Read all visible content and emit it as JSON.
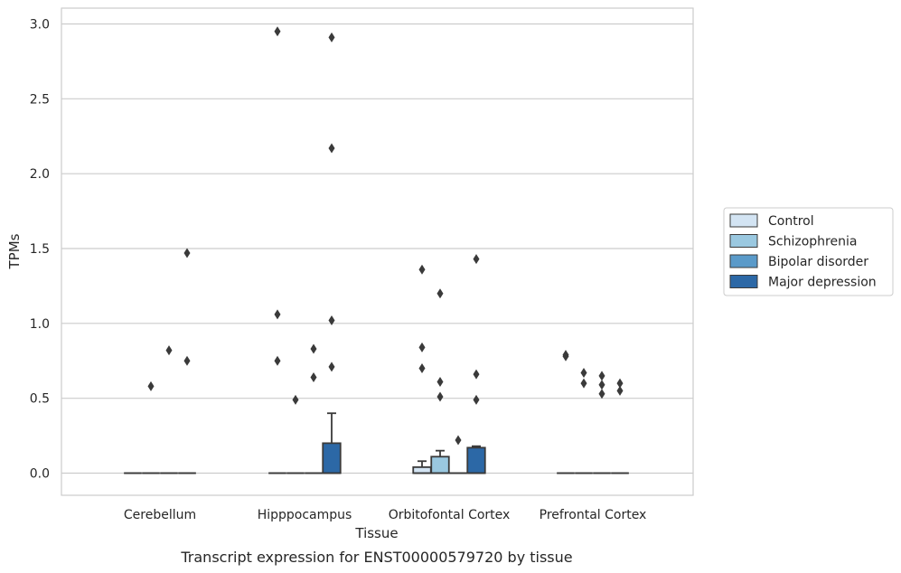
{
  "chart_data": {
    "type": "box",
    "title": "",
    "caption": "Transcript expression for ENST00000579720 by tissue",
    "xlabel": "Tissue",
    "ylabel": "TPMs",
    "ylim": [
      -0.14,
      3.1
    ],
    "yticks": [
      0.0,
      0.5,
      1.0,
      1.5,
      2.0,
      2.5,
      3.0
    ],
    "ytick_labels": [
      "0.0",
      "0.5",
      "1.0",
      "1.5",
      "2.0",
      "2.5",
      "3.0"
    ],
    "grid": true,
    "legend_placement": "right",
    "categories": [
      "Cerebellum",
      "Hipppocampus",
      "Orbitofontal Cortex",
      "Prefrontal Cortex"
    ],
    "series": [
      {
        "name": "Control",
        "color": "#d3e4f3",
        "boxes": [
          {
            "q1": 0,
            "median": 0,
            "q3": 0,
            "whisker_low": 0,
            "whisker_high": 0,
            "outliers": []
          },
          {
            "q1": 0,
            "median": 0,
            "q3": 0,
            "whisker_low": 0,
            "whisker_high": 0,
            "outliers": [
              2.95,
              1.06,
              0.75
            ]
          },
          {
            "q1": 0,
            "median": 0,
            "q3": 0.04,
            "whisker_low": 0,
            "whisker_high": 0.08,
            "outliers": [
              1.36,
              0.84,
              0.7
            ]
          },
          {
            "q1": 0,
            "median": 0,
            "q3": 0,
            "whisker_low": 0,
            "whisker_high": 0,
            "outliers": [
              0.79,
              0.78
            ]
          }
        ]
      },
      {
        "name": "Schizophrenia",
        "color": "#9ac8e0",
        "boxes": [
          {
            "q1": 0,
            "median": 0,
            "q3": 0,
            "whisker_low": 0,
            "whisker_high": 0,
            "outliers": [
              0.58
            ]
          },
          {
            "q1": 0,
            "median": 0,
            "q3": 0,
            "whisker_low": 0,
            "whisker_high": 0,
            "outliers": [
              0.49
            ]
          },
          {
            "q1": 0,
            "median": 0,
            "q3": 0.11,
            "whisker_low": 0,
            "whisker_high": 0.15,
            "outliers": [
              1.2,
              0.61,
              0.51
            ]
          },
          {
            "q1": 0,
            "median": 0,
            "q3": 0,
            "whisker_low": 0,
            "whisker_high": 0,
            "outliers": [
              0.67,
              0.6
            ]
          }
        ]
      },
      {
        "name": "Bipolar disorder",
        "color": "#5a9ac9",
        "boxes": [
          {
            "q1": 0,
            "median": 0,
            "q3": 0,
            "whisker_low": 0,
            "whisker_high": 0,
            "outliers": [
              0.82
            ]
          },
          {
            "q1": 0,
            "median": 0,
            "q3": 0,
            "whisker_low": 0,
            "whisker_high": 0,
            "outliers": [
              0.83,
              0.64
            ]
          },
          {
            "q1": 0,
            "median": 0,
            "q3": 0,
            "whisker_low": 0,
            "whisker_high": 0,
            "outliers": [
              0.22
            ]
          },
          {
            "q1": 0,
            "median": 0,
            "q3": 0,
            "whisker_low": 0,
            "whisker_high": 0,
            "outliers": [
              0.65,
              0.59,
              0.53
            ]
          }
        ]
      },
      {
        "name": "Major depression",
        "color": "#2c68a6",
        "boxes": [
          {
            "q1": 0,
            "median": 0,
            "q3": 0,
            "whisker_low": 0,
            "whisker_high": 0,
            "outliers": [
              1.47,
              0.75
            ]
          },
          {
            "q1": 0,
            "median": 0,
            "q3": 0.2,
            "whisker_low": 0,
            "whisker_high": 0.4,
            "outliers": [
              2.91,
              2.17,
              1.02,
              0.71
            ]
          },
          {
            "q1": 0,
            "median": 0,
            "q3": 0.17,
            "whisker_low": 0,
            "whisker_high": 0.18,
            "outliers": [
              1.43,
              0.66,
              0.49
            ]
          },
          {
            "q1": 0,
            "median": 0,
            "q3": 0,
            "whisker_low": 0,
            "whisker_high": 0,
            "outliers": [
              0.6,
              0.55
            ]
          }
        ]
      }
    ]
  }
}
